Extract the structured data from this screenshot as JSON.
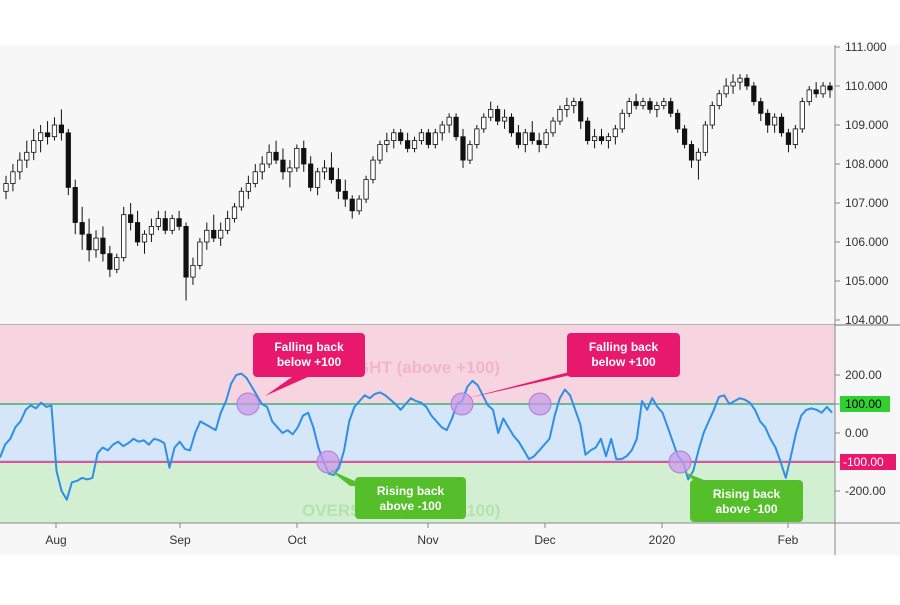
{
  "chart_data": [
    {
      "type": "candlestick",
      "title": "",
      "xlabel": "",
      "ylabel": "",
      "x_tick_labels": [
        "Aug",
        "Sep",
        "Oct",
        "Nov",
        "Dec",
        "2020",
        "Feb"
      ],
      "y_tick_labels": [
        "111.000",
        "110.000",
        "109.000",
        "108.000",
        "107.000",
        "106.000",
        "105.000",
        "104.000"
      ],
      "ylim": [
        104.0,
        111.0
      ],
      "ohlc": [
        [
          107.3,
          107.7,
          107.1,
          107.5
        ],
        [
          107.5,
          108.0,
          107.3,
          107.8
        ],
        [
          107.8,
          108.3,
          107.6,
          108.1
        ],
        [
          108.1,
          108.6,
          107.9,
          108.3
        ],
        [
          108.3,
          108.9,
          108.1,
          108.6
        ],
        [
          108.6,
          109.0,
          108.3,
          108.8
        ],
        [
          108.8,
          109.1,
          108.5,
          108.7
        ],
        [
          108.7,
          109.2,
          108.6,
          109.0
        ],
        [
          109.0,
          109.4,
          108.6,
          108.8
        ],
        [
          108.8,
          108.9,
          107.2,
          107.4
        ],
        [
          107.4,
          107.6,
          106.2,
          106.5
        ],
        [
          106.5,
          106.9,
          105.8,
          106.2
        ],
        [
          106.2,
          106.6,
          105.5,
          105.8
        ],
        [
          105.8,
          106.3,
          105.6,
          106.1
        ],
        [
          106.1,
          106.4,
          105.5,
          105.7
        ],
        [
          105.7,
          105.9,
          105.1,
          105.3
        ],
        [
          105.3,
          105.7,
          105.2,
          105.6
        ],
        [
          105.6,
          106.9,
          105.5,
          106.7
        ],
        [
          106.7,
          107.0,
          106.3,
          106.5
        ],
        [
          106.5,
          106.8,
          105.9,
          106.0
        ],
        [
          106.0,
          106.3,
          105.7,
          106.2
        ],
        [
          106.2,
          106.6,
          106.0,
          106.4
        ],
        [
          106.4,
          106.8,
          106.3,
          106.6
        ],
        [
          106.6,
          106.8,
          106.2,
          106.3
        ],
        [
          106.3,
          106.7,
          106.2,
          106.6
        ],
        [
          106.6,
          106.8,
          106.3,
          106.4
        ],
        [
          106.4,
          106.5,
          104.5,
          105.1
        ],
        [
          105.1,
          105.6,
          104.9,
          105.4
        ],
        [
          105.4,
          106.1,
          105.3,
          106.0
        ],
        [
          106.0,
          106.5,
          105.8,
          106.3
        ],
        [
          106.3,
          106.7,
          106.0,
          106.1
        ],
        [
          106.1,
          106.5,
          105.9,
          106.3
        ],
        [
          106.3,
          106.8,
          106.2,
          106.6
        ],
        [
          106.6,
          107.0,
          106.5,
          106.9
        ],
        [
          106.9,
          107.4,
          106.8,
          107.3
        ],
        [
          107.3,
          107.7,
          107.1,
          107.5
        ],
        [
          107.5,
          108.0,
          107.4,
          107.8
        ],
        [
          107.8,
          108.2,
          107.6,
          108.0
        ],
        [
          108.0,
          108.5,
          107.9,
          108.3
        ],
        [
          108.3,
          108.6,
          108.0,
          108.1
        ],
        [
          108.1,
          108.4,
          107.6,
          107.8
        ],
        [
          107.8,
          108.1,
          107.4,
          107.9
        ],
        [
          107.9,
          108.5,
          107.8,
          108.4
        ],
        [
          108.4,
          108.6,
          107.8,
          108.0
        ],
        [
          108.0,
          108.2,
          107.3,
          107.4
        ],
        [
          107.4,
          107.9,
          107.2,
          107.8
        ],
        [
          107.8,
          108.1,
          107.6,
          107.9
        ],
        [
          107.9,
          108.3,
          107.5,
          107.6
        ],
        [
          107.6,
          107.9,
          107.1,
          107.3
        ],
        [
          107.3,
          107.6,
          106.9,
          107.1
        ],
        [
          107.1,
          107.2,
          106.6,
          106.8
        ],
        [
          106.8,
          107.2,
          106.7,
          107.1
        ],
        [
          107.1,
          107.7,
          107.0,
          107.6
        ],
        [
          107.6,
          108.2,
          107.5,
          108.1
        ],
        [
          108.1,
          108.6,
          108.0,
          108.5
        ],
        [
          108.5,
          108.8,
          108.3,
          108.6
        ],
        [
          108.6,
          108.9,
          108.4,
          108.8
        ],
        [
          108.8,
          108.9,
          108.5,
          108.6
        ],
        [
          108.6,
          108.8,
          108.3,
          108.4
        ],
        [
          108.4,
          108.7,
          108.3,
          108.6
        ],
        [
          108.6,
          108.9,
          108.5,
          108.8
        ],
        [
          108.8,
          108.9,
          108.4,
          108.5
        ],
        [
          108.5,
          108.9,
          108.4,
          108.8
        ],
        [
          108.8,
          109.1,
          108.6,
          109.0
        ],
        [
          109.0,
          109.3,
          108.8,
          109.2
        ],
        [
          109.2,
          109.3,
          108.6,
          108.7
        ],
        [
          108.7,
          108.9,
          107.9,
          108.1
        ],
        [
          108.1,
          108.6,
          108.0,
          108.5
        ],
        [
          108.5,
          109.0,
          108.4,
          108.9
        ],
        [
          108.9,
          109.3,
          108.8,
          109.2
        ],
        [
          109.2,
          109.6,
          109.1,
          109.4
        ],
        [
          109.4,
          109.5,
          109.0,
          109.1
        ],
        [
          109.1,
          109.4,
          108.9,
          109.2
        ],
        [
          109.2,
          109.3,
          108.7,
          108.8
        ],
        [
          108.8,
          109.0,
          108.4,
          108.5
        ],
        [
          108.5,
          108.9,
          108.3,
          108.8
        ],
        [
          108.8,
          109.1,
          108.5,
          108.6
        ],
        [
          108.6,
          108.8,
          108.3,
          108.5
        ],
        [
          108.5,
          108.9,
          108.4,
          108.8
        ],
        [
          108.8,
          109.2,
          108.7,
          109.1
        ],
        [
          109.1,
          109.5,
          109.0,
          109.4
        ],
        [
          109.4,
          109.7,
          109.2,
          109.5
        ],
        [
          109.5,
          109.7,
          109.3,
          109.6
        ],
        [
          109.6,
          109.7,
          108.9,
          109.1
        ],
        [
          109.1,
          109.2,
          108.5,
          108.6
        ],
        [
          108.6,
          108.9,
          108.4,
          108.7
        ],
        [
          108.7,
          108.9,
          108.5,
          108.6
        ],
        [
          108.6,
          108.8,
          108.4,
          108.7
        ],
        [
          108.7,
          109.0,
          108.5,
          108.9
        ],
        [
          108.9,
          109.4,
          108.8,
          109.3
        ],
        [
          109.3,
          109.7,
          109.2,
          109.6
        ],
        [
          109.6,
          109.8,
          109.4,
          109.5
        ],
        [
          109.5,
          109.7,
          109.4,
          109.6
        ],
        [
          109.6,
          109.7,
          109.3,
          109.4
        ],
        [
          109.4,
          109.6,
          109.2,
          109.5
        ],
        [
          109.5,
          109.7,
          109.4,
          109.6
        ],
        [
          109.6,
          109.7,
          109.2,
          109.3
        ],
        [
          109.3,
          109.4,
          108.8,
          108.9
        ],
        [
          108.9,
          109.0,
          108.4,
          108.5
        ],
        [
          108.5,
          108.6,
          107.9,
          108.1
        ],
        [
          108.1,
          108.4,
          107.6,
          108.3
        ],
        [
          108.3,
          109.1,
          108.2,
          109.0
        ],
        [
          109.0,
          109.6,
          108.9,
          109.5
        ],
        [
          109.5,
          109.9,
          109.4,
          109.8
        ],
        [
          109.8,
          110.2,
          109.7,
          110.0
        ],
        [
          110.0,
          110.3,
          109.8,
          110.1
        ],
        [
          110.1,
          110.3,
          109.9,
          110.2
        ],
        [
          110.2,
          110.3,
          109.9,
          110.0
        ],
        [
          110.0,
          110.1,
          109.5,
          109.6
        ],
        [
          109.6,
          109.7,
          109.1,
          109.3
        ],
        [
          109.3,
          109.4,
          108.8,
          109.0
        ],
        [
          109.0,
          109.3,
          108.8,
          109.2
        ],
        [
          109.2,
          109.3,
          108.7,
          108.8
        ],
        [
          108.8,
          108.9,
          108.3,
          108.5
        ],
        [
          108.5,
          109.0,
          108.4,
          108.9
        ],
        [
          108.9,
          109.7,
          108.8,
          109.6
        ],
        [
          109.6,
          110.0,
          109.5,
          109.9
        ],
        [
          109.9,
          110.1,
          109.7,
          109.8
        ],
        [
          109.8,
          110.1,
          109.7,
          110.0
        ],
        [
          110.0,
          110.1,
          109.7,
          109.9
        ]
      ]
    },
    {
      "type": "line",
      "title": "",
      "xlabel": "",
      "ylabel": "",
      "y_tick_labels": [
        "200.00",
        "100.00",
        "0.00",
        "-100.00",
        "-200.00"
      ],
      "ylim": [
        -300,
        300
      ],
      "overbought_level": 100,
      "oversold_level": -100,
      "overbought_label": "OVERBOUGHT (above +100)",
      "oversold_label": "OVERSOLD (below -100)",
      "series": [
        {
          "values": [
            -85,
            -40,
            -20,
            20,
            40,
            80,
            95,
            85,
            105,
            90,
            95,
            -130,
            -200,
            -230,
            -170,
            -165,
            -155,
            -160,
            -155,
            -70,
            -50,
            -60,
            -40,
            -30,
            -45,
            -35,
            -20,
            -30,
            -25,
            -40,
            -20,
            -25,
            -35,
            -120,
            -50,
            -30,
            -55,
            -60,
            0,
            40,
            30,
            20,
            10,
            70,
            110,
            170,
            200,
            205,
            190,
            160,
            130,
            100,
            90,
            40,
            20,
            0,
            10,
            -5,
            20,
            60,
            70,
            20,
            -50,
            -100,
            -140,
            -145,
            -120,
            -60,
            40,
            90,
            110,
            130,
            120,
            135,
            140,
            130,
            115,
            100,
            80,
            100,
            120,
            110,
            105,
            90,
            60,
            40,
            20,
            10,
            50,
            100,
            110,
            160,
            180,
            165,
            130,
            95,
            80,
            0,
            50,
            20,
            -10,
            -30,
            -60,
            -90,
            -80,
            -60,
            -40,
            -20,
            60,
            120,
            150,
            130,
            80,
            30,
            -75,
            -60,
            -50,
            -20,
            -80,
            -20,
            -90,
            -90,
            -80,
            -60,
            -20,
            110,
            80,
            120,
            90,
            70,
            20,
            -30,
            -80,
            -100,
            -160,
            -130,
            -60,
            0,
            40,
            80,
            125,
            130,
            100,
            110,
            120,
            115,
            105,
            80,
            40,
            20,
            -20,
            -50,
            -100,
            -155,
            -80,
            0,
            60,
            80,
            85,
            80,
            70,
            90,
            70
          ]
        }
      ],
      "annotations": [
        {
          "text_line1": "Falling back",
          "text_line2": "below +100",
          "color": "#e8186c"
        },
        {
          "text_line1": "Rising back",
          "text_line2": "above -100",
          "color": "#54bf2a"
        },
        {
          "text_line1": "Falling back",
          "text_line2": "below +100",
          "color": "#e8186c"
        },
        {
          "text_line1": "Rising back",
          "text_line2": "above -100",
          "color": "#54bf2a"
        }
      ]
    }
  ],
  "colors": {
    "up_candle": "#ffffff",
    "down_candle": "#111111",
    "cci_line": "#2f8fe6",
    "overbought_zone": "#f7d5e0",
    "neutral_zone": "#d4e6f7",
    "oversold_zone": "#d3efd1",
    "green_level": "#3cb371",
    "red_level": "#e8186c",
    "label_green": "#2fd12f",
    "label_red": "#e8186c",
    "marker": "#c99be9"
  }
}
